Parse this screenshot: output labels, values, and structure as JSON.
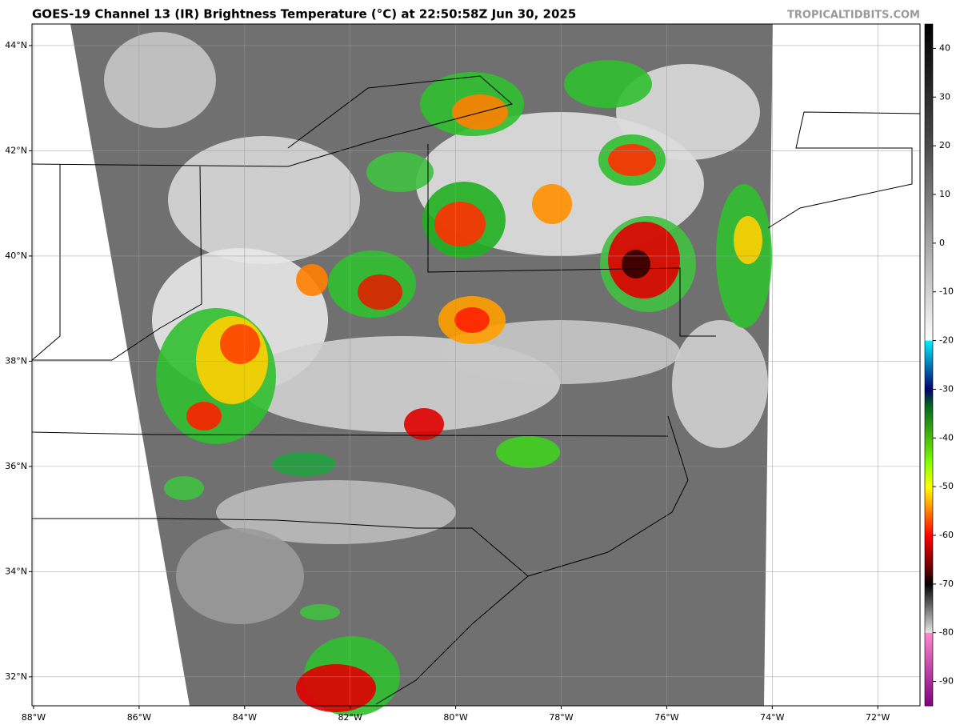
{
  "chart_data": {
    "type": "satellite-map",
    "title": "GOES-19 Channel 13 (IR) Brightness Temperature (°C) at 22:50:58Z Jun 30, 2025",
    "watermark": "TROPICALTIDBITS.COM",
    "xlim": [
      -88.03,
      -71.2
    ],
    "ylim": [
      31.45,
      44.41
    ],
    "xticks": [
      {
        "value": -88,
        "label": "88°W"
      },
      {
        "value": -86,
        "label": "86°W"
      },
      {
        "value": -84,
        "label": "84°W"
      },
      {
        "value": -82,
        "label": "82°W"
      },
      {
        "value": -80,
        "label": "80°W"
      },
      {
        "value": -78,
        "label": "78°W"
      },
      {
        "value": -76,
        "label": "76°W"
      },
      {
        "value": -74,
        "label": "74°W"
      },
      {
        "value": -72,
        "label": "72°W"
      }
    ],
    "yticks": [
      {
        "value": 32,
        "label": "32°N"
      },
      {
        "value": 34,
        "label": "34°N"
      },
      {
        "value": 36,
        "label": "36°N"
      },
      {
        "value": 38,
        "label": "38°N"
      },
      {
        "value": 40,
        "label": "40°N"
      },
      {
        "value": 42,
        "label": "42°N"
      },
      {
        "value": 44,
        "label": "44°N"
      }
    ],
    "grid": true,
    "colorbar": {
      "lim": [
        -95,
        45
      ],
      "ticks": [
        40,
        30,
        20,
        10,
        0,
        -10,
        -20,
        -30,
        -40,
        -50,
        -60,
        -70,
        -80,
        -90
      ],
      "stops": [
        {
          "value": 45,
          "color": "#000000"
        },
        {
          "value": 20,
          "color": "#4a4a4a"
        },
        {
          "value": -20,
          "color": "#ffffff"
        },
        {
          "value": -20,
          "color": "#00f0ff"
        },
        {
          "value": -30,
          "color": "#000070"
        },
        {
          "value": -33,
          "color": "#006020"
        },
        {
          "value": -45,
          "color": "#80ff00"
        },
        {
          "value": -50,
          "color": "#ffff00"
        },
        {
          "value": -55,
          "color": "#ff8000"
        },
        {
          "value": -60,
          "color": "#ff0000"
        },
        {
          "value": -67,
          "color": "#600000"
        },
        {
          "value": -70,
          "color": "#000000"
        },
        {
          "value": -80,
          "color": "#e8e8e8"
        },
        {
          "value": -80,
          "color": "#ff88cc"
        },
        {
          "value": -95,
          "color": "#800080"
        }
      ]
    }
  }
}
